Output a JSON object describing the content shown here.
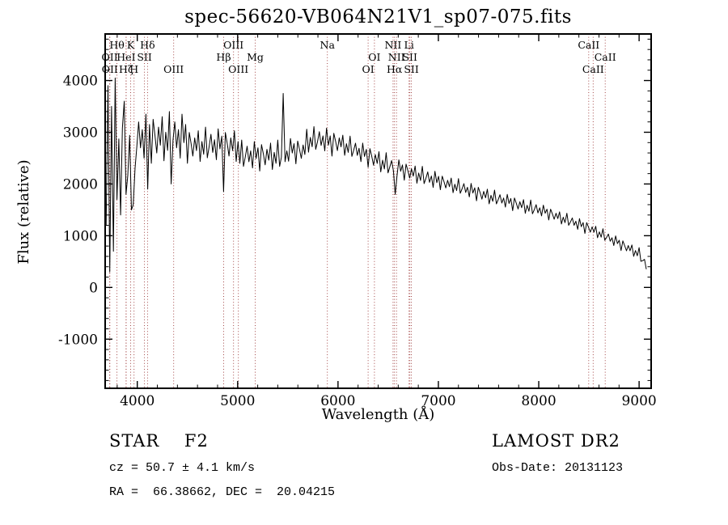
{
  "chart_data": {
    "type": "line",
    "title": "spec-56620-VB064N21V1_sp07-075.fits",
    "xlabel": "Wavelength (Å)",
    "ylabel": "Flux (relative)",
    "xlim": [
      3680,
      9120
    ],
    "ylim": [
      -1950,
      4900
    ],
    "x_ticks": [
      4000,
      5000,
      6000,
      7000,
      8000,
      9000
    ],
    "y_ticks": [
      -1000,
      0,
      1000,
      2000,
      3000,
      4000
    ],
    "x_minor_step": 200,
    "y_minor_step": 200,
    "grid": false,
    "legend": "none",
    "line_color": "#000000",
    "line_marker_color": "#993333",
    "series": {
      "name": "flux",
      "x_start": 3690,
      "x_step": 18,
      "flux": [
        1200,
        3900,
        300,
        3500,
        700,
        4050,
        1700,
        2870,
        1400,
        3080,
        3600,
        1800,
        2170,
        2940,
        1500,
        1600,
        2310,
        2730,
        3200,
        2700,
        3050,
        2500,
        3350,
        1900,
        3150,
        2400,
        3250,
        2950,
        2600,
        3100,
        2750,
        3300,
        2450,
        3000,
        2650,
        3400,
        2000,
        2850,
        3200,
        2700,
        3050,
        2500,
        3350,
        2800,
        3150,
        2400,
        2995,
        2785,
        2540,
        2890,
        2645,
        3030,
        2435,
        2820,
        2575,
        3100,
        2505,
        2715,
        2960,
        2610,
        2855,
        2470,
        3065,
        2680,
        2925,
        1850,
        2995,
        2785,
        2540,
        2890,
        2645,
        3030,
        2435,
        2820,
        2400,
        2850,
        2340,
        2520,
        2730,
        2430,
        2640,
        2310,
        2820,
        2490,
        2700,
        2250,
        2760,
        2580,
        2370,
        2670,
        2460,
        2790,
        2280,
        2610,
        2400,
        2850,
        2340,
        2520,
        3750,
        2430,
        2640,
        2440,
        2880,
        2600,
        2780,
        2390,
        2830,
        2675,
        2495,
        2755,
        2570,
        3060,
        2615,
        2900,
        2720,
        3110,
        2670,
        2825,
        3010,
        2745,
        2930,
        2640,
        3080,
        2750,
        2930,
        2540,
        2980,
        2825,
        2645,
        2890,
        2718,
        2944,
        2554,
        2780,
        2610,
        2924,
        2534,
        2650,
        2788,
        2552,
        2690,
        2432,
        2790,
        2532,
        2670,
        2324,
        2682,
        2534,
        2364,
        2568,
        2398,
        2624,
        2234,
        2460,
        2290,
        2604,
        2214,
        2331,
        2453,
        2252,
        1800,
        2154,
        2466,
        2246,
        2368,
        2072,
        2384,
        2259,
        2115,
        2294,
        2150,
        2348,
        2014,
        2212,
        2068,
        2342,
        2008,
        2111,
        2233,
        2032,
        2154,
        1934,
        2246,
        2026,
        2148,
        1890,
        2151,
        2045,
        1922,
        2071,
        1948,
        2114,
        1831,
        1996,
        1873,
        2103,
        1820,
        1905,
        2006,
        1836,
        1937,
        1750,
        2011,
        1825,
        1926,
        1675,
        1936,
        1830,
        1707,
        1856,
        1733,
        1899,
        1616,
        1780,
        1665,
        1881,
        1616,
        1697,
        1792,
        1632,
        1728,
        1553,
        1799,
        1624,
        1719,
        1485,
        1730,
        1631,
        1516,
        1657,
        1542,
        1697,
        1433,
        1588,
        1474,
        1689,
        1424,
        1505,
        1600,
        1441,
        1539,
        1383,
        1591,
        1435,
        1513,
        1305,
        1513,
        1422,
        1318,
        1435,
        1331,
        1461,
        1227,
        1357,
        1253,
        1435,
        1201,
        1266,
        1344,
        1201,
        1279,
        1123,
        1331,
        1175,
        1253,
        1045,
        1253,
        1162,
        1068,
        1170,
        1068,
        1182,
        960,
        1074,
        972,
        1134,
        912,
        966,
        1032,
        894,
        960,
        810,
        996,
        846,
        912,
        714,
        900,
        810,
        708,
        810,
        708,
        822,
        600,
        714,
        612,
        770,
        506,
        518,
        542,
        352
      ]
    },
    "spectral_lines": [
      {
        "label": "Hθ",
        "wavelength": 3798,
        "row": 0
      },
      {
        "label": "K",
        "wavelength": 3934,
        "row": 0
      },
      {
        "label": "Hδ",
        "wavelength": 4102,
        "row": 0
      },
      {
        "label": "OIII",
        "wavelength": 4959,
        "row": 0
      },
      {
        "label": "Na",
        "wavelength": 5894,
        "row": 0
      },
      {
        "label": "NII",
        "wavelength": 6548,
        "row": 0
      },
      {
        "label": "Li",
        "wavelength": 6708,
        "row": 0
      },
      {
        "label": "CaII",
        "wavelength": 8498,
        "row": 0
      },
      {
        "label": "OII",
        "wavelength": 3725,
        "row": 1
      },
      {
        "label": "HeI",
        "wavelength": 3889,
        "row": 1
      },
      {
        "label": "SII",
        "wavelength": 4072,
        "row": 1
      },
      {
        "label": "Hβ",
        "wavelength": 4861,
        "row": 1
      },
      {
        "label": "Mg",
        "wavelength": 5175,
        "row": 1
      },
      {
        "label": "OI",
        "wavelength": 6363,
        "row": 1
      },
      {
        "label": "NII",
        "wavelength": 6583,
        "row": 1
      },
      {
        "label": "SII",
        "wavelength": 6716,
        "row": 1
      },
      {
        "label": "CaII",
        "wavelength": 8662,
        "row": 1
      },
      {
        "label": "OII",
        "wavelength": 3727,
        "row": 2
      },
      {
        "label": "Hζ",
        "wavelength": 3889,
        "row": 2
      },
      {
        "label": "H",
        "wavelength": 3968,
        "row": 2
      },
      {
        "label": "OIII",
        "wavelength": 4363,
        "row": 2
      },
      {
        "label": "OIII",
        "wavelength": 5007,
        "row": 2
      },
      {
        "label": "OI",
        "wavelength": 6300,
        "row": 2
      },
      {
        "label": "Hα",
        "wavelength": 6563,
        "row": 2
      },
      {
        "label": "SII",
        "wavelength": 6731,
        "row": 2
      },
      {
        "label": "CaII",
        "wavelength": 8542,
        "row": 2
      }
    ]
  },
  "footer": {
    "class_label": "STAR    F2",
    "survey": "LAMOST DR2",
    "cz": "cz = 50.7 ± 4.1 km/s",
    "obs_date": "Obs-Date: 20131123",
    "radec": "RA =  66.38662, DEC =  20.04215"
  }
}
